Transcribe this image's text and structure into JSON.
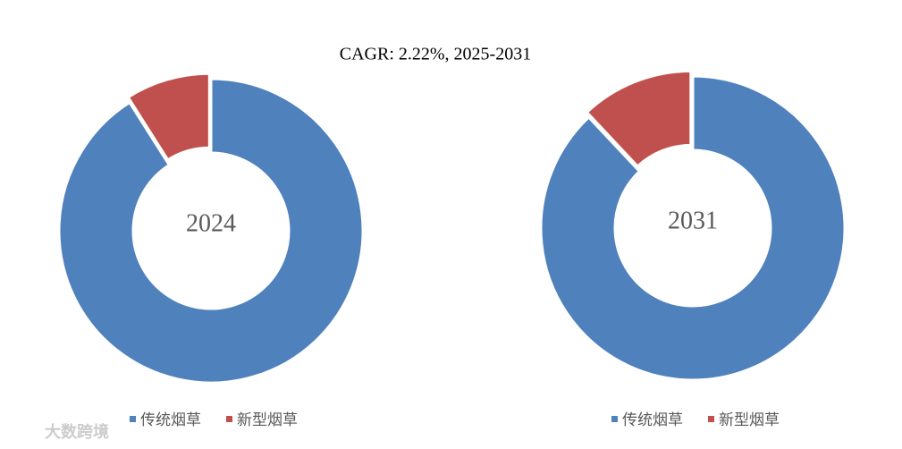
{
  "title": "CAGR:   2.22%, 2025-2031",
  "watermark": "大数跨境",
  "chart_data": [
    {
      "type": "pie",
      "donut": true,
      "center_label": "2024",
      "categories": [
        "传统烟草",
        "新型烟草"
      ],
      "values": [
        91,
        9
      ],
      "colors": [
        "#4f81bd",
        "#c0504d"
      ],
      "legend": "bottom"
    },
    {
      "type": "pie",
      "donut": true,
      "center_label": "2031",
      "categories": [
        "传统烟草",
        "新型烟草"
      ],
      "values": [
        88,
        12
      ],
      "colors": [
        "#4f81bd",
        "#c0504d"
      ],
      "legend": "bottom"
    }
  ]
}
